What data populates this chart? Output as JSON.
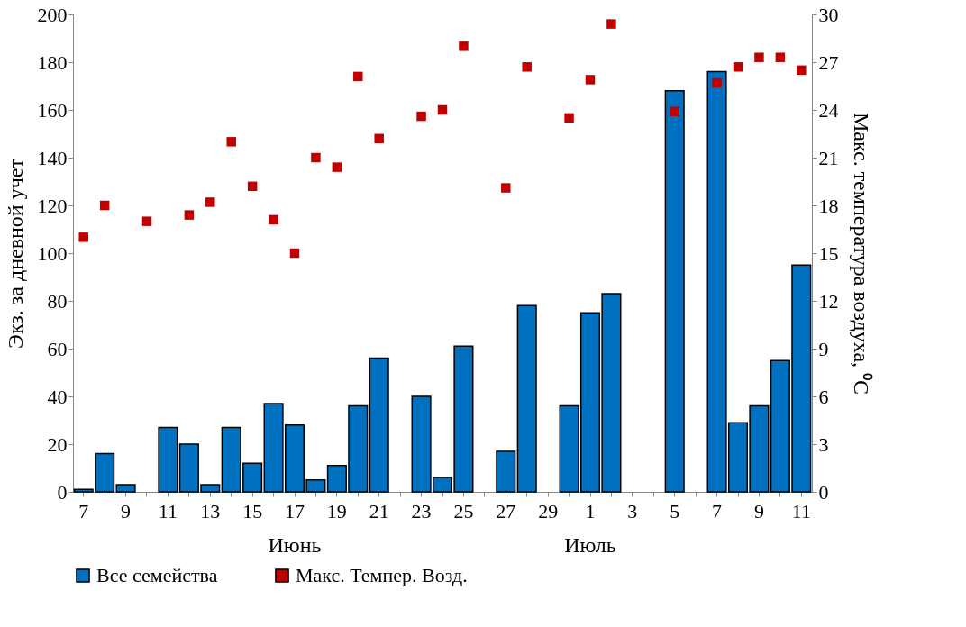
{
  "chart_data": {
    "type": "bar",
    "ylabel": "Экз. за дневной учет",
    "y2label": "Макс. температура воздуха, ⁰C",
    "categories": [
      "7",
      null,
      "9",
      null,
      "11",
      null,
      "13",
      null,
      "15",
      null,
      "17",
      null,
      "19",
      null,
      "21",
      null,
      "23",
      null,
      "25",
      null,
      "27",
      null,
      "29",
      null,
      "1",
      null,
      "3",
      null,
      "5",
      null,
      "7",
      null,
      "9",
      null,
      "11"
    ],
    "series": [
      {
        "name": "Все семейства",
        "color": "#0070c0",
        "values": [
          1,
          16,
          3,
          null,
          27,
          20,
          3,
          27,
          12,
          37,
          28,
          5,
          11,
          36,
          56,
          null,
          40,
          6,
          61,
          null,
          17,
          78,
          null,
          36,
          75,
          83,
          null,
          null,
          168,
          null,
          176,
          29,
          36,
          55,
          95
        ]
      },
      {
        "name": "Макс. Темпер. Возд.",
        "type": "scatter",
        "axis": "y2",
        "color": "#c00000",
        "values": [
          16,
          18,
          null,
          17,
          null,
          17.4,
          18.2,
          22,
          19.2,
          17.1,
          15,
          21,
          20.4,
          26.1,
          22.2,
          null,
          23.6,
          24,
          28,
          null,
          19.1,
          26.7,
          null,
          23.5,
          25.9,
          29.4,
          null,
          null,
          23.9,
          null,
          25.7,
          26.7,
          27.3,
          27.3,
          26.5
        ]
      }
    ],
    "ylim": [
      0,
      200
    ],
    "yticks": [
      0,
      20,
      40,
      60,
      80,
      100,
      120,
      140,
      160,
      180,
      200
    ],
    "y2lim": [
      0,
      30
    ],
    "y2ticks": [
      0,
      3,
      6,
      9,
      12,
      15,
      18,
      21,
      24,
      27,
      30
    ],
    "annotations": [
      "Июнь",
      "Июль"
    ],
    "legend": "bottom",
    "marker": "square",
    "grid": false
  }
}
